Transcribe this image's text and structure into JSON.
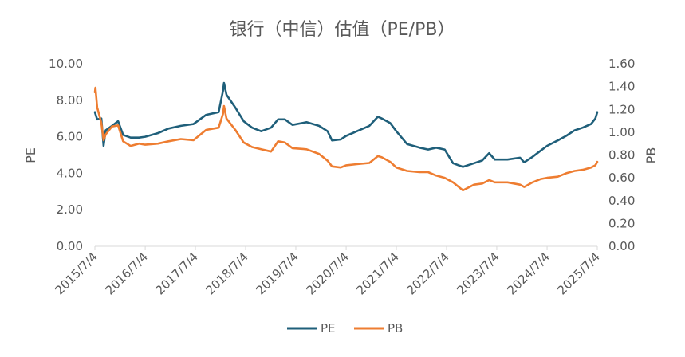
{
  "chart_data": {
    "type": "line",
    "title": "银行（中信）估值（PE/PB）",
    "y_left": {
      "label": "PE",
      "lim": [
        0,
        10
      ],
      "ticks": [
        "0.00",
        "2.00",
        "4.00",
        "6.00",
        "8.00",
        "10.00"
      ]
    },
    "y_right": {
      "label": "PB",
      "lim": [
        0,
        1.6
      ],
      "ticks": [
        "0.00",
        "0.20",
        "0.40",
        "0.60",
        "0.80",
        "1.00",
        "1.20",
        "1.40",
        "1.60"
      ]
    },
    "x_ticks": [
      "2015/7/4",
      "2016/7/4",
      "2017/7/4",
      "2018/7/4",
      "2019/7/4",
      "2020/7/4",
      "2021/7/4",
      "2022/7/4",
      "2023/7/4",
      "2024/7/4",
      "2025/7/4"
    ],
    "x_range": [
      "2015/7/4",
      "2025/7/4"
    ],
    "grid": false,
    "legend_position": "bottom",
    "series": [
      {
        "name": "PE",
        "color": "#1f5f7a",
        "axis": "left",
        "points": [
          [
            "2015/7/4",
            7.35
          ],
          [
            "2015/7/20",
            6.95
          ],
          [
            "2015/8/20",
            7.0
          ],
          [
            "2015/9/5",
            5.5
          ],
          [
            "2015/9/20",
            6.35
          ],
          [
            "2015/11/5",
            6.6
          ],
          [
            "2015/12/20",
            6.85
          ],
          [
            "2016/1/25",
            6.1
          ],
          [
            "2016/3/20",
            5.95
          ],
          [
            "2016/5/20",
            5.95
          ],
          [
            "2016/7/4",
            6.0
          ],
          [
            "2016/10/5",
            6.2
          ],
          [
            "2016/12/20",
            6.45
          ],
          [
            "2017/3/20",
            6.6
          ],
          [
            "2017/6/20",
            6.7
          ],
          [
            "2017/9/20",
            7.2
          ],
          [
            "2017/12/20",
            7.35
          ],
          [
            "2018/1/20",
            8.5
          ],
          [
            "2018/1/28",
            8.95
          ],
          [
            "2018/2/15",
            8.3
          ],
          [
            "2018/4/20",
            7.6
          ],
          [
            "2018/6/20",
            6.85
          ],
          [
            "2018/8/20",
            6.5
          ],
          [
            "2018/10/25",
            6.3
          ],
          [
            "2019/1/5",
            6.5
          ],
          [
            "2019/2/25",
            6.95
          ],
          [
            "2019/4/15",
            6.95
          ],
          [
            "2019/6/10",
            6.65
          ],
          [
            "2019/9/20",
            6.8
          ],
          [
            "2019/12/20",
            6.6
          ],
          [
            "2020/2/20",
            6.3
          ],
          [
            "2020/3/23",
            5.8
          ],
          [
            "2020/5/25",
            5.85
          ],
          [
            "2020/7/4",
            6.05
          ],
          [
            "2020/9/20",
            6.3
          ],
          [
            "2020/12/20",
            6.6
          ],
          [
            "2021/2/20",
            7.1
          ],
          [
            "2021/3/20",
            7.0
          ],
          [
            "2021/5/20",
            6.75
          ],
          [
            "2021/7/4",
            6.3
          ],
          [
            "2021/9/20",
            5.6
          ],
          [
            "2021/12/20",
            5.4
          ],
          [
            "2022/2/20",
            5.3
          ],
          [
            "2022/4/20",
            5.4
          ],
          [
            "2022/6/20",
            5.3
          ],
          [
            "2022/8/20",
            4.55
          ],
          [
            "2022/10/31",
            4.35
          ],
          [
            "2023/1/20",
            4.55
          ],
          [
            "2023/3/20",
            4.7
          ],
          [
            "2023/5/10",
            5.1
          ],
          [
            "2023/6/20",
            4.75
          ],
          [
            "2023/9/20",
            4.75
          ],
          [
            "2023/12/20",
            4.85
          ],
          [
            "2024/1/20",
            4.6
          ],
          [
            "2024/3/20",
            4.9
          ],
          [
            "2024/5/20",
            5.25
          ],
          [
            "2024/7/4",
            5.5
          ],
          [
            "2024/9/20",
            5.8
          ],
          [
            "2024/11/20",
            6.05
          ],
          [
            "2025/1/20",
            6.35
          ],
          [
            "2025/3/20",
            6.5
          ],
          [
            "2025/5/20",
            6.7
          ],
          [
            "2025/6/20",
            7.0
          ],
          [
            "2025/7/4",
            7.35
          ]
        ]
      },
      {
        "name": "PB",
        "color": "#ee7d31",
        "axis": "right",
        "points": [
          [
            "2015/7/4",
            1.35
          ],
          [
            "2015/7/8",
            1.39
          ],
          [
            "2015/7/20",
            1.22
          ],
          [
            "2015/8/20",
            1.08
          ],
          [
            "2015/9/5",
            0.93
          ],
          [
            "2015/9/20",
            0.98
          ],
          [
            "2015/11/5",
            1.05
          ],
          [
            "2015/12/20",
            1.06
          ],
          [
            "2016/1/25",
            0.92
          ],
          [
            "2016/3/20",
            0.88
          ],
          [
            "2016/5/20",
            0.9
          ],
          [
            "2016/7/4",
            0.89
          ],
          [
            "2016/10/5",
            0.9
          ],
          [
            "2016/12/20",
            0.92
          ],
          [
            "2017/3/20",
            0.94
          ],
          [
            "2017/6/20",
            0.93
          ],
          [
            "2017/9/20",
            1.02
          ],
          [
            "2017/12/20",
            1.04
          ],
          [
            "2018/1/20",
            1.16
          ],
          [
            "2018/1/28",
            1.23
          ],
          [
            "2018/2/15",
            1.12
          ],
          [
            "2018/4/20",
            1.02
          ],
          [
            "2018/6/20",
            0.91
          ],
          [
            "2018/8/20",
            0.87
          ],
          [
            "2018/10/25",
            0.85
          ],
          [
            "2019/1/5",
            0.83
          ],
          [
            "2019/2/25",
            0.92
          ],
          [
            "2019/4/15",
            0.91
          ],
          [
            "2019/6/10",
            0.86
          ],
          [
            "2019/9/20",
            0.85
          ],
          [
            "2019/12/20",
            0.81
          ],
          [
            "2020/2/20",
            0.75
          ],
          [
            "2020/3/23",
            0.7
          ],
          [
            "2020/5/25",
            0.69
          ],
          [
            "2020/7/4",
            0.71
          ],
          [
            "2020/9/20",
            0.72
          ],
          [
            "2020/12/20",
            0.73
          ],
          [
            "2021/2/20",
            0.79
          ],
          [
            "2021/3/20",
            0.78
          ],
          [
            "2021/5/20",
            0.74
          ],
          [
            "2021/7/4",
            0.69
          ],
          [
            "2021/9/20",
            0.66
          ],
          [
            "2021/12/20",
            0.65
          ],
          [
            "2022/2/20",
            0.65
          ],
          [
            "2022/4/20",
            0.62
          ],
          [
            "2022/6/20",
            0.6
          ],
          [
            "2022/8/20",
            0.56
          ],
          [
            "2022/10/31",
            0.49
          ],
          [
            "2023/1/20",
            0.54
          ],
          [
            "2023/3/20",
            0.55
          ],
          [
            "2023/5/10",
            0.58
          ],
          [
            "2023/6/20",
            0.56
          ],
          [
            "2023/9/20",
            0.56
          ],
          [
            "2023/12/20",
            0.54
          ],
          [
            "2024/1/20",
            0.52
          ],
          [
            "2024/3/20",
            0.56
          ],
          [
            "2024/5/20",
            0.59
          ],
          [
            "2024/7/4",
            0.6
          ],
          [
            "2024/9/20",
            0.61
          ],
          [
            "2024/11/20",
            0.64
          ],
          [
            "2025/1/20",
            0.66
          ],
          [
            "2025/3/20",
            0.67
          ],
          [
            "2025/5/20",
            0.69
          ],
          [
            "2025/6/20",
            0.71
          ],
          [
            "2025/7/4",
            0.74
          ]
        ]
      }
    ]
  }
}
